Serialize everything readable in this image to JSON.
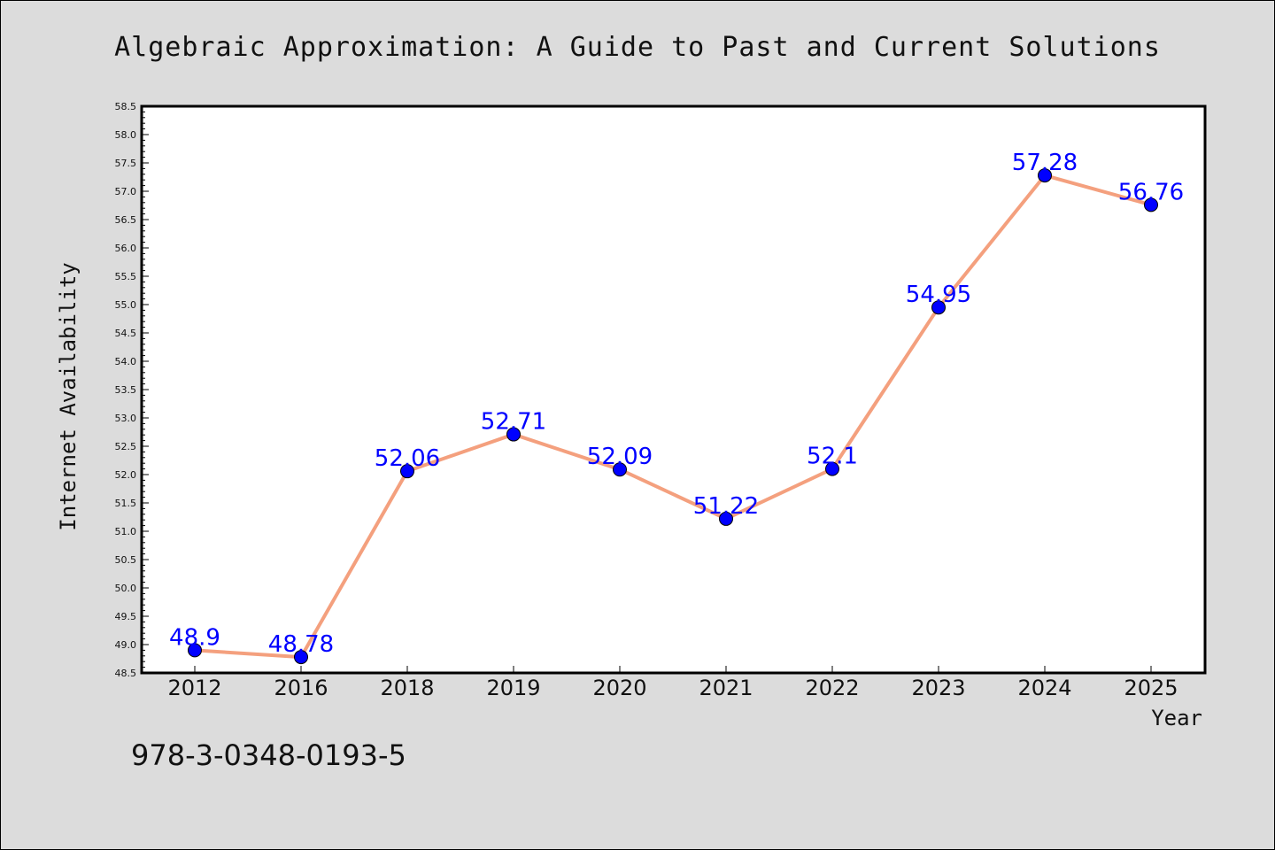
{
  "chart_data": {
    "type": "line",
    "title": "Algebraic Approximation: A Guide to Past and Current Solutions",
    "xlabel": "Year",
    "ylabel": "Internet Availability",
    "categories": [
      "2012",
      "2016",
      "2018",
      "2019",
      "2020",
      "2021",
      "2022",
      "2023",
      "2024",
      "2025"
    ],
    "series": [
      {
        "values": [
          48.9,
          48.78,
          52.06,
          52.71,
          52.09,
          51.22,
          52.1,
          54.95,
          57.28,
          56.76
        ],
        "data_labels": [
          "48.9",
          "48.78",
          "52.06",
          "52.71",
          "52.09",
          "51.22",
          "52.1",
          "54.95",
          "57.28",
          "56.76"
        ],
        "line_color": "#f4a07e",
        "marker_color": "#0000ff"
      }
    ],
    "ylim": [
      48.5,
      58.5
    ],
    "ytick_step": 0.5,
    "grid": false,
    "legend": "none",
    "plot_background": "#ffffff",
    "figure_background": "#dcdcdc"
  },
  "footer": {
    "isbn": "978-3-0348-0193-5"
  }
}
